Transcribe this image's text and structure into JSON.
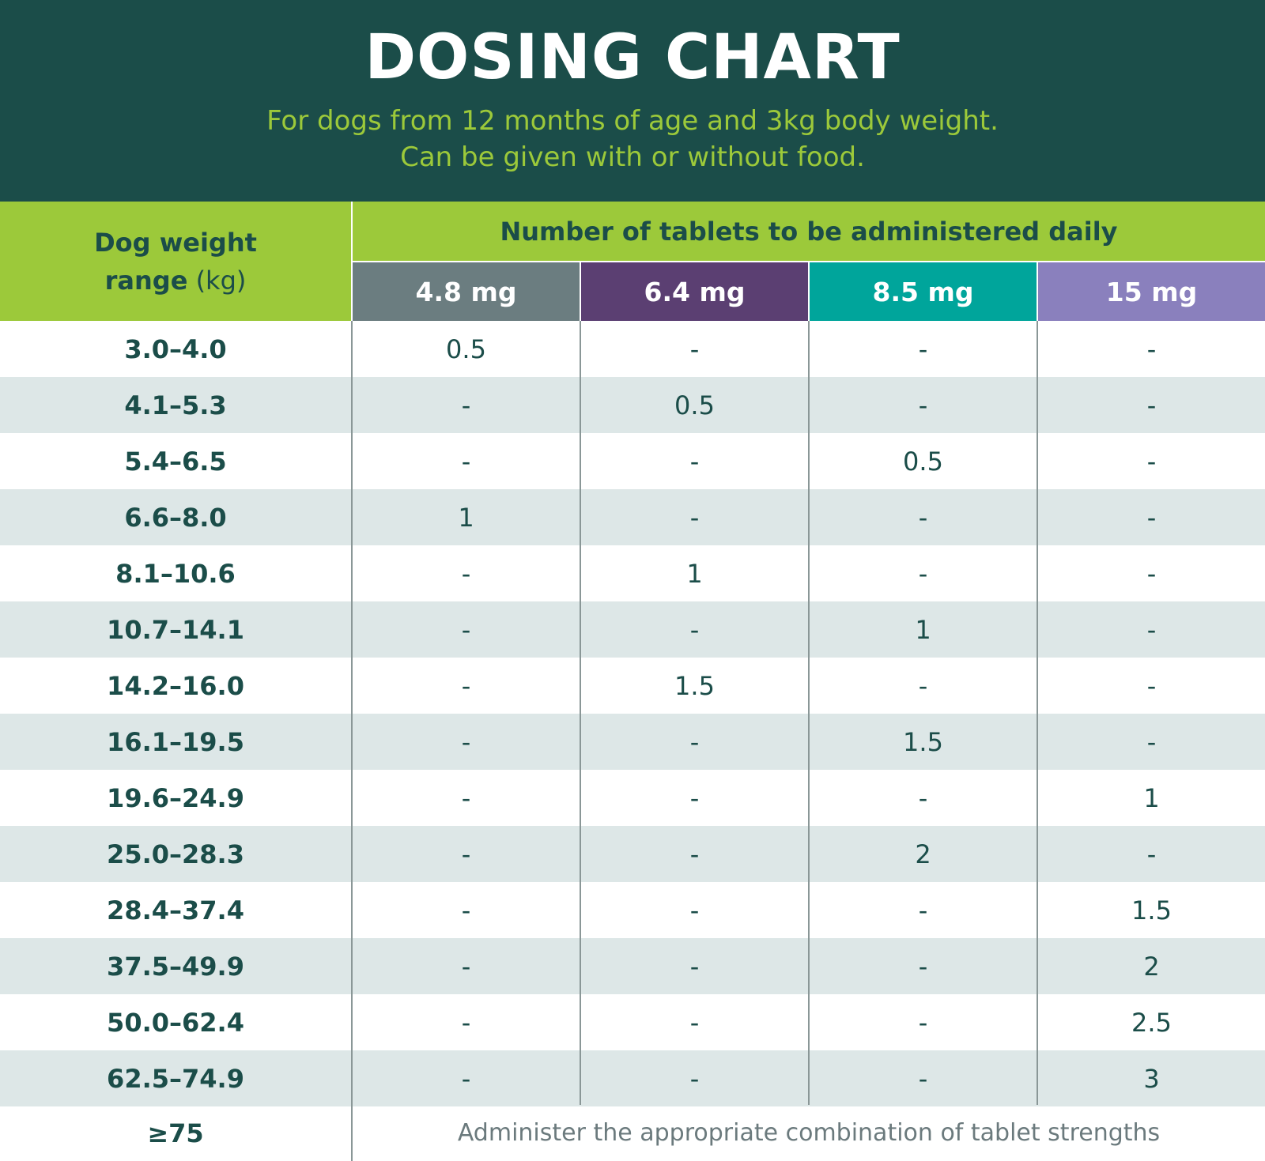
{
  "header": {
    "title": "DOSING CHART",
    "subtitle_line1": "For dogs from 12 months of age and 3kg body weight.",
    "subtitle_line2": "Can be given with or without food."
  },
  "table": {
    "weight_header_line1": "Dog weight",
    "weight_header_line2_bold": "range",
    "weight_header_unit": "(kg)",
    "tablets_header": "Number of tablets to be administered daily",
    "strengths": [
      {
        "label": "4.8 mg",
        "color": "#6b7d80"
      },
      {
        "label": "6.4 mg",
        "color": "#5b3f72"
      },
      {
        "label": "8.5 mg",
        "color": "#00a59b"
      },
      {
        "label": "15 mg",
        "color": "#8a80bd"
      }
    ],
    "rows": [
      {
        "weight": "3.0–4.0",
        "doses": [
          "0.5",
          "-",
          "-",
          "-"
        ]
      },
      {
        "weight": "4.1–5.3",
        "doses": [
          "-",
          "0.5",
          "-",
          "-"
        ]
      },
      {
        "weight": "5.4–6.5",
        "doses": [
          "-",
          "-",
          "0.5",
          "-"
        ]
      },
      {
        "weight": "6.6–8.0",
        "doses": [
          "1",
          "-",
          "-",
          "-"
        ]
      },
      {
        "weight": "8.1–10.6",
        "doses": [
          "-",
          "1",
          "-",
          "-"
        ]
      },
      {
        "weight": "10.7–14.1",
        "doses": [
          "-",
          "-",
          "1",
          "-"
        ]
      },
      {
        "weight": "14.2–16.0",
        "doses": [
          "-",
          "1.5",
          "-",
          "-"
        ]
      },
      {
        "weight": "16.1–19.5",
        "doses": [
          "-",
          "-",
          "1.5",
          "-"
        ]
      },
      {
        "weight": "19.6–24.9",
        "doses": [
          "-",
          "-",
          "-",
          "1"
        ]
      },
      {
        "weight": "25.0–28.3",
        "doses": [
          "-",
          "-",
          "2",
          "-"
        ]
      },
      {
        "weight": "28.4–37.4",
        "doses": [
          "-",
          "-",
          "-",
          "1.5"
        ]
      },
      {
        "weight": "37.5–49.9",
        "doses": [
          "-",
          "-",
          "-",
          "2"
        ]
      },
      {
        "weight": "50.0–62.4",
        "doses": [
          "-",
          "-",
          "-",
          "2.5"
        ]
      },
      {
        "weight": "62.5–74.9",
        "doses": [
          "-",
          "-",
          "-",
          "3"
        ]
      }
    ],
    "last_row": {
      "weight": "≥75",
      "note": "Administer the appropriate combination of tablet strengths"
    }
  }
}
